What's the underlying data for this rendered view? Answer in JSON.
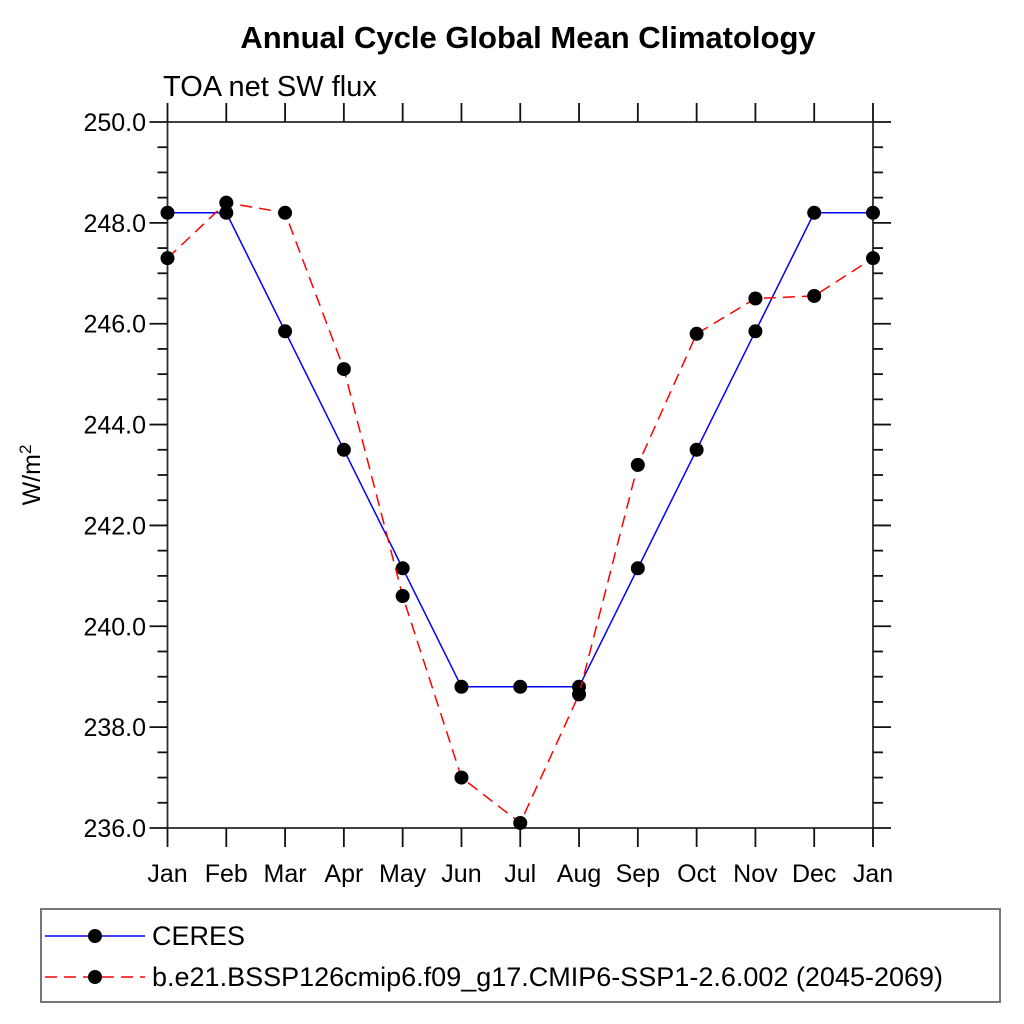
{
  "page": {
    "background": "#ffffff"
  },
  "chart_data": {
    "type": "line",
    "title": "Annual Cycle Global Mean Climatology",
    "subtitle": "TOA net SW flux",
    "xlabel": "",
    "ylabel": "W/m²",
    "categories": [
      "Jan",
      "Feb",
      "Mar",
      "Apr",
      "May",
      "Jun",
      "Jul",
      "Aug",
      "Sep",
      "Oct",
      "Nov",
      "Dec",
      "Jan"
    ],
    "series": [
      {
        "name": "CERES",
        "color": "#0000ff",
        "style": "solid",
        "marker": "filled-circle",
        "marker_color": "#000000",
        "values": [
          248.2,
          248.2,
          245.85,
          243.5,
          241.15,
          238.8,
          238.8,
          238.8,
          241.15,
          243.5,
          245.85,
          248.2,
          248.2
        ]
      },
      {
        "name": "b.e21.BSSP126cmip6.f09_g17.CMIP6-SSP1-2.6.002 (2045-2069)",
        "color": "#ff0000",
        "style": "dashed",
        "marker": "filled-circle",
        "marker_color": "#000000",
        "values": [
          247.3,
          248.4,
          248.2,
          245.1,
          240.6,
          237.0,
          236.1,
          238.65,
          243.2,
          245.8,
          246.5,
          246.55,
          247.3
        ]
      }
    ],
    "ylim": [
      236.0,
      250.0
    ],
    "y_major_step": 2.0,
    "y_minor_step": 0.5,
    "y_tick_labels": [
      "250.0",
      "248.0",
      "246.0",
      "244.0",
      "242.0",
      "240.0",
      "238.0",
      "236.0"
    ],
    "x_tick_labels": [
      "Jan",
      "Feb",
      "Mar",
      "Apr",
      "May",
      "Jun",
      "Jul",
      "Aug",
      "Sep",
      "Oct",
      "Nov",
      "Dec",
      "Jan"
    ],
    "grid": false,
    "legend_position": "bottom-left-box"
  },
  "y_axis_unit": {
    "base": "W/m",
    "sup": "2"
  },
  "legend": {
    "entries": [
      {
        "label": "CERES",
        "line_color": "#0000ff",
        "line_style": "solid",
        "marker": "filled-circle"
      },
      {
        "label": "b.e21.BSSP126cmip6.f09_g17.CMIP6-SSP1-2.6.002 (2045-2069)",
        "line_color": "#ff0000",
        "line_style": "dashed",
        "marker": "filled-circle"
      }
    ]
  },
  "colors": {
    "ceres_line": "#0000ff",
    "model_line": "#ff0000",
    "marker": "#000000",
    "axis_frame": "#2e2e2e",
    "tick": "#111111",
    "legend_border": "#777777"
  }
}
